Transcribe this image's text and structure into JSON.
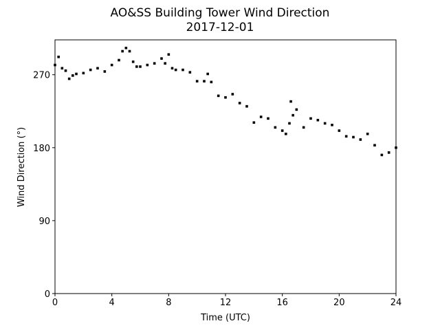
{
  "chart_data": {
    "type": "scatter",
    "title": "AO&SS Building Tower Wind Direction",
    "subtitle": "2017-12-01",
    "x_label": "Time (UTC)",
    "y_label": "Wind Direction (°)",
    "color": "#000000",
    "x": [
      0,
      0.25,
      0.5,
      0.75,
      1.0,
      1.25,
      1.5,
      2.0,
      2.5,
      3.0,
      3.5,
      4.0,
      4.5,
      4.75,
      5.0,
      5.25,
      5.5,
      5.75,
      6.0,
      6.5,
      7.0,
      7.5,
      7.75,
      8.0,
      8.25,
      8.5,
      9.0,
      9.5,
      10.0,
      10.5,
      10.75,
      11.0,
      11.5,
      12.0,
      12.5,
      13.0,
      13.5,
      14.0,
      14.5,
      15.0,
      15.5,
      16.0,
      16.25,
      16.5,
      16.6,
      16.75,
      17.0,
      17.5,
      18.0,
      18.5,
      19.0,
      19.5,
      20.0,
      20.5,
      21.0,
      21.5,
      22.0,
      22.5,
      23.0,
      23.5,
      24.0
    ],
    "values": [
      282,
      292,
      278,
      275,
      265,
      269,
      271,
      272,
      276,
      278,
      274,
      282,
      288,
      299,
      303,
      299,
      286,
      280,
      280,
      282,
      284,
      290,
      284,
      295,
      278,
      276,
      276,
      273,
      262,
      262,
      271,
      261,
      244,
      242,
      246,
      235,
      231,
      211,
      218,
      216,
      205,
      201,
      197,
      210,
      237,
      220,
      227,
      205,
      216,
      214,
      210,
      208,
      201,
      194,
      193,
      190,
      197,
      183,
      171,
      174,
      180
    ],
    "xlim": [
      0,
      24
    ],
    "xticks": [
      0,
      4,
      8,
      12,
      16,
      20,
      24
    ],
    "ylim": [
      0,
      313
    ],
    "yticks": [
      0,
      90,
      180,
      270
    ]
  }
}
